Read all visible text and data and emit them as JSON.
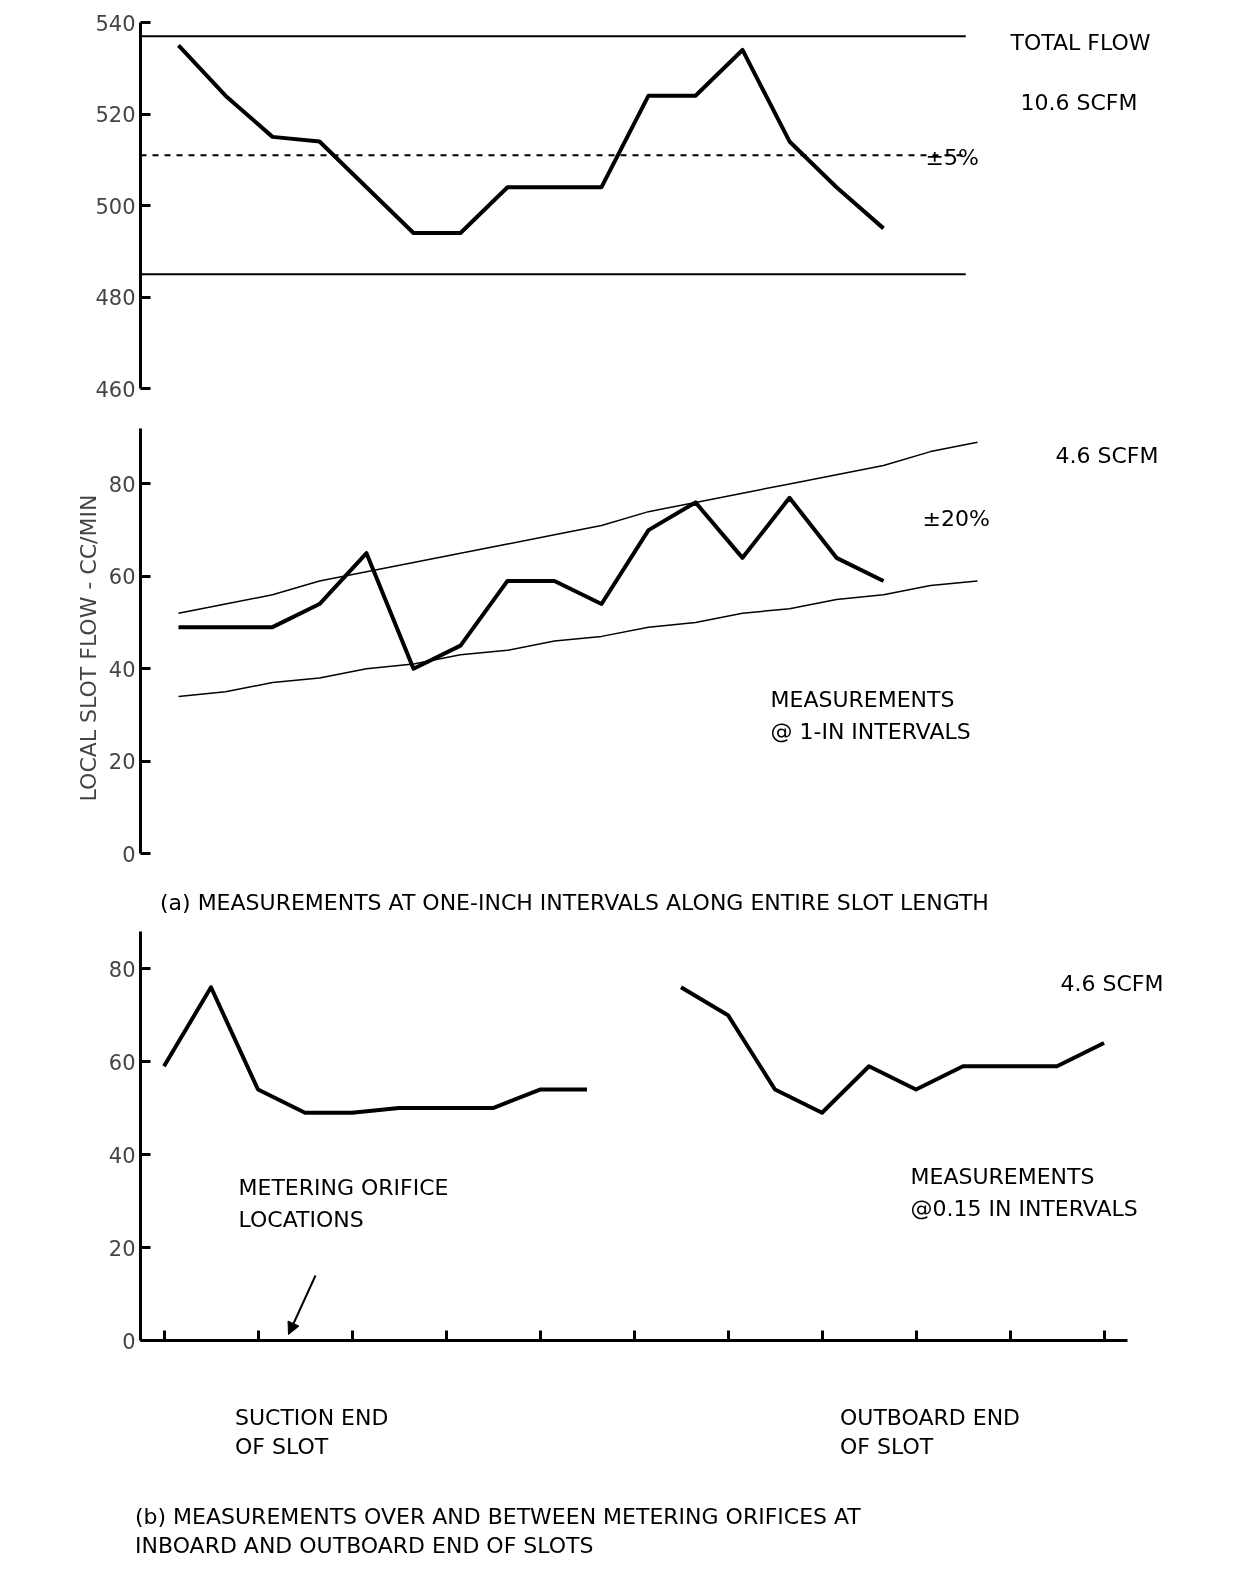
{
  "chart_data": [
    {
      "type": "line",
      "categories": [
        null,
        null,
        null,
        null,
        null,
        null,
        null,
        null,
        null,
        null,
        null,
        null,
        null,
        null,
        null,
        null
      ],
      "series": [
        {
          "color": "#000000",
          "values": [
            535,
            524,
            515,
            514,
            504,
            494,
            494,
            504,
            504,
            504,
            524,
            524,
            534,
            514,
            504,
            495
          ]
        }
      ],
      "ylim": [
        460,
        540
      ],
      "yticks": [
        460,
        480,
        500,
        520,
        540
      ],
      "tick_labels": "y",
      "grid": false,
      "ref_lines": [
        {
          "axis": "y",
          "value": 537,
          "color": "#000000"
        },
        {
          "axis": "y",
          "value": 485,
          "color": "#000000"
        },
        {
          "axis": "y",
          "value": 511,
          "color": "#000000",
          "line_style": "dashed"
        }
      ],
      "annotations": [
        "TOTAL FLOW",
        "10.6 SCFM",
        "±5%"
      ]
    },
    {
      "type": "line",
      "categories": [
        null,
        null,
        null,
        null,
        null,
        null,
        null,
        null,
        null,
        null,
        null,
        null,
        null,
        null,
        null,
        null,
        null,
        null
      ],
      "series": [
        {
          "color": "#000000",
          "values": [
            49,
            49,
            49,
            54,
            65,
            40,
            45,
            59,
            59,
            54,
            70,
            76,
            64,
            77,
            64,
            59,
            null,
            null
          ]
        },
        {
          "color": "#000000",
          "values": [
            52,
            54,
            56,
            59,
            61,
            63,
            65,
            67,
            69,
            71,
            74,
            76,
            78,
            80,
            82,
            84,
            87,
            89
          ]
        },
        {
          "color": "#000000",
          "values": [
            34,
            35,
            37,
            38,
            40,
            41,
            43,
            44,
            46,
            47,
            49,
            50,
            52,
            53,
            55,
            56,
            58,
            59
          ]
        }
      ],
      "ylim": [
        0,
        92
      ],
      "yticks": [
        0,
        20,
        40,
        60,
        80
      ],
      "tick_labels": "y",
      "grid": false,
      "ylabel": "LOCAL SLOT FLOW  -  CC/MIN",
      "annotations": [
        "4.6 SCFM",
        "±20%",
        "MEASUREMENTS\n@ 1-IN INTERVALS",
        "(a) MEASUREMENTS AT ONE-INCH INTERVALS ALONG ENTIRE SLOT LENGTH"
      ]
    },
    {
      "type": "line",
      "categories": [
        null,
        null,
        null,
        null,
        null,
        null,
        null,
        null,
        null,
        null,
        null,
        null,
        null,
        null,
        null,
        null,
        null,
        null,
        null,
        null,
        null
      ],
      "series": [
        {
          "color": "#000000",
          "values": [
            59,
            76,
            54,
            49,
            49,
            50,
            50,
            50,
            54,
            54,
            null,
            null,
            null,
            null,
            null,
            null,
            null,
            null,
            null,
            null,
            null
          ]
        },
        {
          "color": "#000000",
          "values": [
            null,
            null,
            null,
            null,
            null,
            null,
            null,
            null,
            null,
            null,
            null,
            76,
            70,
            54,
            49,
            59,
            54,
            59,
            59,
            59,
            64
          ]
        }
      ],
      "ylim": [
        0,
        88
      ],
      "yticks": [
        0,
        20,
        40,
        60,
        80
      ],
      "tick_labels": "y",
      "grid": false,
      "annotations": [
        "4.6 SCFM",
        "METERING ORIFICE\nLOCATIONS",
        "MEASUREMENTS\n@0.15 IN INTERVALS",
        "SUCTION END\nOF SLOT",
        "OUTBOARD END\nOF SLOT",
        "(b) MEASUREMENTS OVER AND BETWEEN METERING ORIFICES AT\nINBOARD AND OUTBOARD END OF SLOTS"
      ]
    }
  ]
}
